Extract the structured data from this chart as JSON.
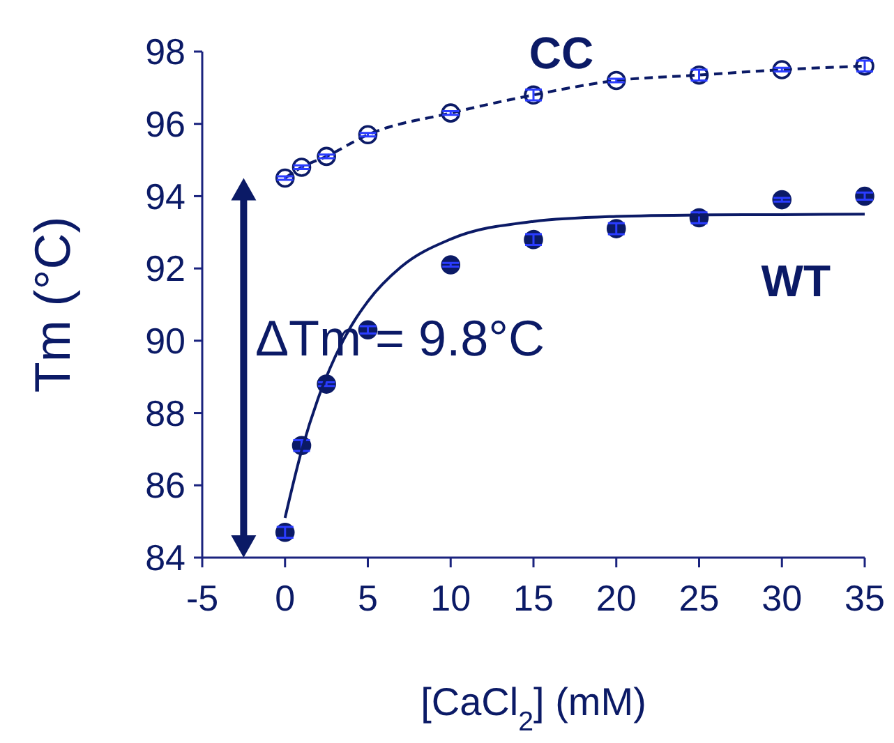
{
  "chart_data": {
    "type": "scatter",
    "xlabel": "[CaCl$_{2}$] (mM)",
    "ylabel": "Tm (°C)",
    "annotations": [
      "ΔTm = 9.8°C"
    ],
    "xlim": [
      -5,
      35
    ],
    "xticks": [
      -5,
      0,
      5,
      10,
      15,
      20,
      25,
      30,
      35
    ],
    "ylim": [
      84,
      98
    ],
    "yticks": [
      84,
      86,
      88,
      90,
      92,
      94,
      96,
      98
    ],
    "grid": false,
    "series": [
      {
        "name": "CC",
        "type": "line",
        "line_style": "dashed",
        "marker": "circle",
        "color": "#0b1a66",
        "x": [
          0,
          1,
          2.5,
          5,
          10,
          15,
          20,
          25,
          30,
          35
        ],
        "values": [
          94.5,
          94.8,
          95.1,
          95.7,
          96.3,
          96.8,
          97.2,
          97.35,
          97.5,
          97.6
        ],
        "errors": [
          0.05,
          0.05,
          0.05,
          0.05,
          0.05,
          0.15,
          0.05,
          0.15,
          0.05,
          0.15
        ]
      },
      {
        "name": "WT",
        "marker": "circle",
        "color": "#0b1a66",
        "x": [
          0,
          1,
          2.5,
          5,
          10,
          15,
          20,
          25,
          30,
          35
        ],
        "values": [
          84.7,
          87.1,
          88.8,
          90.3,
          92.1,
          92.8,
          93.1,
          93.4,
          93.9,
          94.0
        ],
        "errors": [
          0.15,
          0.15,
          0.05,
          0.1,
          0.05,
          0.15,
          0.15,
          0.15,
          0.05,
          0.1
        ]
      },
      {
        "type": "line",
        "line_style": "solid",
        "marker": "none",
        "color": "#0b1a66",
        "x": [
          0,
          1,
          2,
          3,
          4,
          5,
          7,
          10,
          15,
          20,
          25,
          30,
          35
        ],
        "values": [
          85.1,
          86.96,
          88.41,
          89.53,
          90.41,
          91.09,
          92.04,
          92.81,
          93.3,
          93.44,
          93.48,
          93.49,
          93.5
        ]
      }
    ]
  }
}
